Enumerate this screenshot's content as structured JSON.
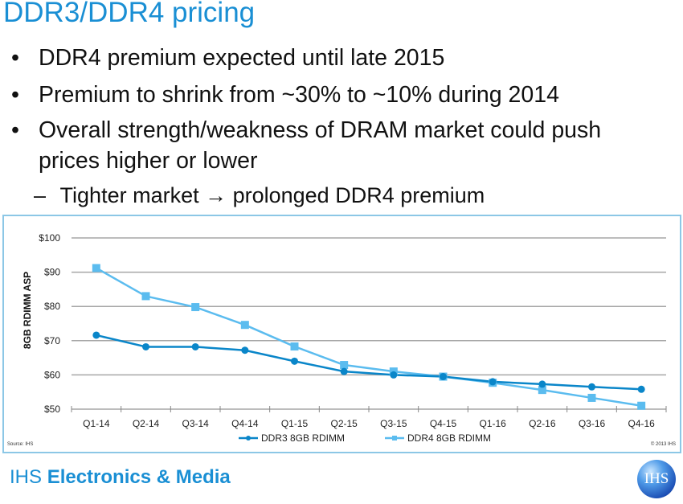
{
  "slide": {
    "title": "DDR3/DDR4 pricing",
    "bullets": [
      {
        "marker": "•",
        "text": "DDR4 premium expected until late 2015"
      },
      {
        "marker": "•",
        "text": "Premium to shrink from ~30% to ~10% during 2014"
      },
      {
        "marker": "•",
        "text": "Overall strength/weakness of DRAM market could push",
        "continuation": "prices higher or lower"
      }
    ],
    "sub_bullets": [
      {
        "marker": "–",
        "text": "Tighter market → prolonged DDR4 premium"
      }
    ],
    "footer": {
      "brand": "IHS",
      "division": "Electronics & Media"
    },
    "logo_text": "IHS"
  },
  "chart_data": {
    "type": "line",
    "title": "",
    "xlabel": "",
    "ylabel": "8GB RDIMM ASP",
    "categories": [
      "Q1-14",
      "Q2-14",
      "Q3-14",
      "Q4-14",
      "Q1-15",
      "Q2-15",
      "Q3-15",
      "Q4-15",
      "Q1-16",
      "Q2-16",
      "Q3-16",
      "Q4-16"
    ],
    "ylim": [
      50,
      100
    ],
    "yticks": [
      50,
      60,
      70,
      80,
      90,
      100
    ],
    "ytick_labels": [
      "$50",
      "$60",
      "$70",
      "$80",
      "$90",
      "$100"
    ],
    "grid": true,
    "legend_position": "bottom-center",
    "series": [
      {
        "name": "DDR3 8GB RDIMM",
        "marker": "circle",
        "color": "#0a86c9",
        "values": [
          71.6,
          68.2,
          68.2,
          67.2,
          64.0,
          61.0,
          60.0,
          59.5,
          58.0,
          57.3,
          56.5,
          55.8
        ]
      },
      {
        "name": "DDR4 8GB RDIMM",
        "marker": "square",
        "color": "#5bbcef",
        "values": [
          91.2,
          83.0,
          79.8,
          74.6,
          68.3,
          62.9,
          61.0,
          59.5,
          57.7,
          55.6,
          53.3,
          51.0
        ]
      }
    ],
    "source_note": "Source: IHS",
    "copyright_note": "© 2013 IHS"
  }
}
